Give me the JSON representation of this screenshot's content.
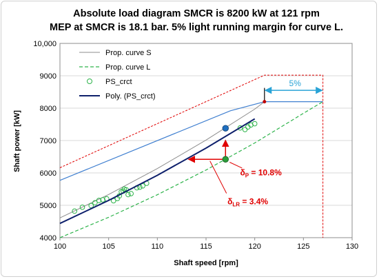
{
  "chart_data": {
    "type": "line",
    "title_lines": [
      "Absolute load diagram  SMCR is 8200 kW at 121 rpm",
      "MEP at SMCR is 18.1 bar. 5% light running margin for curve L."
    ],
    "xlabel": "Shaft speed [rpm]",
    "ylabel": "Shaft power [kW]",
    "xlim": [
      100,
      130
    ],
    "ylim": [
      4000,
      10000
    ],
    "xticks": [
      100,
      105,
      110,
      115,
      120,
      125,
      130
    ],
    "yticks": [
      4000,
      5000,
      6000,
      7000,
      8000,
      9000,
      10000
    ],
    "yticklabels": [
      "4000",
      "5000",
      "6000",
      "7000",
      "8000",
      "9000",
      "10,000"
    ],
    "grid": "y-major",
    "legend_placement": "top-left inside",
    "series": [
      {
        "name": "Prop. curve S",
        "style": "solid",
        "color": "#8c8c8c",
        "x": [
          100,
          105,
          110,
          115,
          120,
          121
        ],
        "y": [
          4610,
          5335,
          6135,
          7015,
          7970,
          8200
        ]
      },
      {
        "name": "Prop. curve L",
        "style": "dashed",
        "color": "#2db34a",
        "x": [
          100,
          105,
          110,
          115,
          120,
          125,
          127
        ],
        "y": [
          4000,
          4630,
          5325,
          6090,
          6925,
          7840,
          8200
        ]
      },
      {
        "name": "PS_crct",
        "style": "markers",
        "color": "#2db34a",
        "x": [
          101.5,
          102.3,
          103.2,
          103.6,
          104.0,
          104.4,
          104.8,
          105.5,
          105.9,
          106.1,
          106.3,
          106.5,
          106.6,
          106.8,
          107.0,
          107.3,
          107.9,
          108.2,
          108.5,
          108.9,
          118.5,
          119.0,
          119.3,
          119.6,
          120.0
        ],
        "y": [
          4820,
          4940,
          4990,
          5080,
          5150,
          5170,
          5200,
          5140,
          5210,
          5290,
          5420,
          5440,
          5500,
          5480,
          5330,
          5360,
          5540,
          5560,
          5600,
          5680,
          7390,
          7340,
          7420,
          7480,
          7520
        ]
      },
      {
        "name": "Poly. (PS_crct)",
        "style": "solid-bold",
        "color": "#0d1f6b",
        "x": [
          100,
          105,
          110,
          115,
          120
        ],
        "y": [
          4440,
          5150,
          5925,
          6765,
          7670
        ]
      }
    ],
    "unlabeled_lines": [
      {
        "style": "solid",
        "color": "#3f7fd0",
        "x": [
          100,
          117.5,
          121,
          127
        ],
        "y": [
          5770,
          7920,
          8200,
          8200
        ]
      },
      {
        "style": "dotted",
        "color": "#e00000",
        "x": [
          100,
          121,
          127,
          127
        ],
        "y": [
          6160,
          9020,
          9020,
          4000
        ]
      }
    ],
    "points": [
      {
        "x": 121,
        "y": 8200,
        "color": "#c00000"
      },
      {
        "x": 117,
        "y": 7380,
        "color": "#1f6fbf"
      },
      {
        "x": 117,
        "y": 6420,
        "color": "#2a9d3a"
      }
    ],
    "margin_arrow": {
      "label": "5%",
      "x_from": 121,
      "x_to": 127,
      "y": 8550
    },
    "annotations": [
      {
        "main": "δ",
        "sub": "P",
        "rest": " = 10.8%",
        "x": 118.5,
        "y": 6140
      },
      {
        "main": "δ",
        "sub": "LR",
        "rest": " = 3.4%",
        "x": 117.2,
        "y": 5250
      }
    ]
  }
}
